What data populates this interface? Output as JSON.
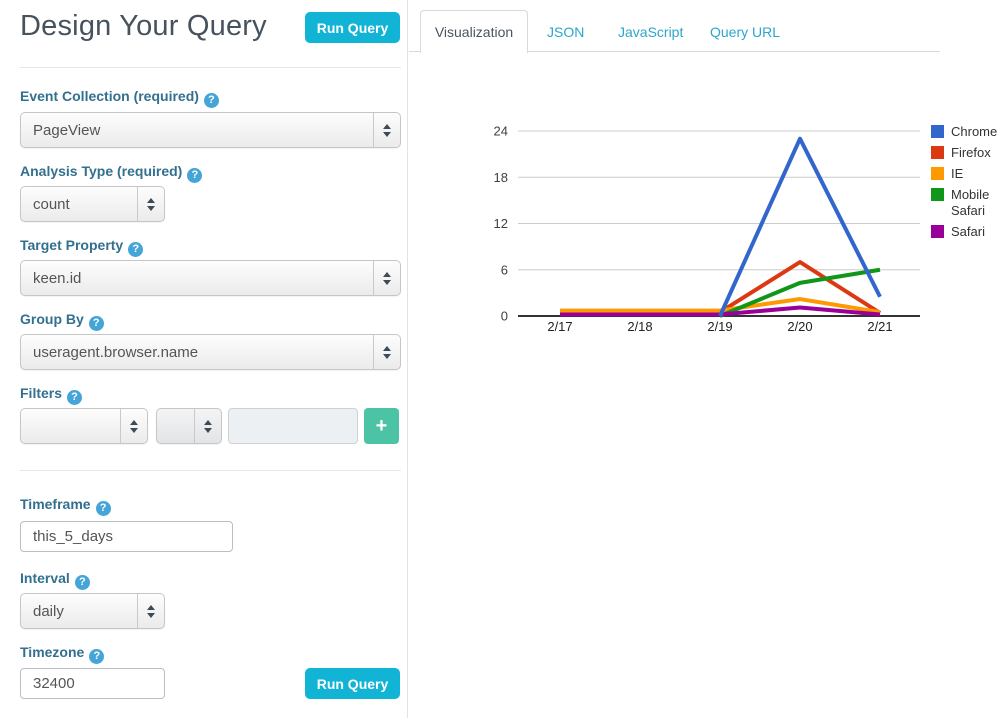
{
  "query_builder": {
    "title": "Design Your Query",
    "run_query_label": "Run Query",
    "help_icon": "?",
    "fields": {
      "event_collection": {
        "label": "Event Collection (required)",
        "value": "PageView"
      },
      "analysis_type": {
        "label": "Analysis Type (required)",
        "value": "count"
      },
      "target_property": {
        "label": "Target Property",
        "value": "keen.id"
      },
      "group_by": {
        "label": "Group By",
        "value": "useragent.browser.name"
      },
      "filters": {
        "label": "Filters",
        "add_button_label": "+",
        "property_value": "",
        "operator_value": "",
        "filter_value": ""
      },
      "timeframe": {
        "label": "Timeframe",
        "value": "this_5_days"
      },
      "interval": {
        "label": "Interval",
        "value": "daily"
      },
      "timezone": {
        "label": "Timezone",
        "value": "32400"
      }
    }
  },
  "tabs": {
    "active": "Visualization",
    "items": [
      {
        "label": "Visualization"
      },
      {
        "label": "JSON"
      },
      {
        "label": "JavaScript"
      },
      {
        "label": "Query URL"
      }
    ]
  },
  "colors": {
    "accent_cyan": "#11B4D4",
    "accent_green": "#4CC3A4",
    "label_teal": "#33708F",
    "help_blue": "#45A5D6",
    "tab_link": "#2BA6CB",
    "heading": "#47525D"
  },
  "chart_data": {
    "type": "line",
    "x_labels": [
      "2/17",
      "2/18",
      "2/19",
      "2/20",
      "2/21"
    ],
    "y_ticks": [
      0,
      6,
      12,
      18,
      24
    ],
    "ylim": [
      0,
      24
    ],
    "grid": true,
    "legend_position": "right",
    "series": [
      {
        "name": "Chrome",
        "color": "#3366CC",
        "values": [
          null,
          null,
          0,
          23,
          2.5
        ]
      },
      {
        "name": "Firefox",
        "color": "#DC3912",
        "values": [
          0.5,
          0.5,
          0.5,
          7,
          0.4
        ]
      },
      {
        "name": "IE",
        "color": "#FF9900",
        "values": [
          0.7,
          0.7,
          0.7,
          2.2,
          0.5
        ]
      },
      {
        "name": "Mobile Safari",
        "color": "#109618",
        "values": [
          null,
          null,
          0,
          4.3,
          6
        ]
      },
      {
        "name": "Safari",
        "color": "#990099",
        "values": [
          0.2,
          0.2,
          0.2,
          1.1,
          0.2
        ]
      }
    ]
  }
}
